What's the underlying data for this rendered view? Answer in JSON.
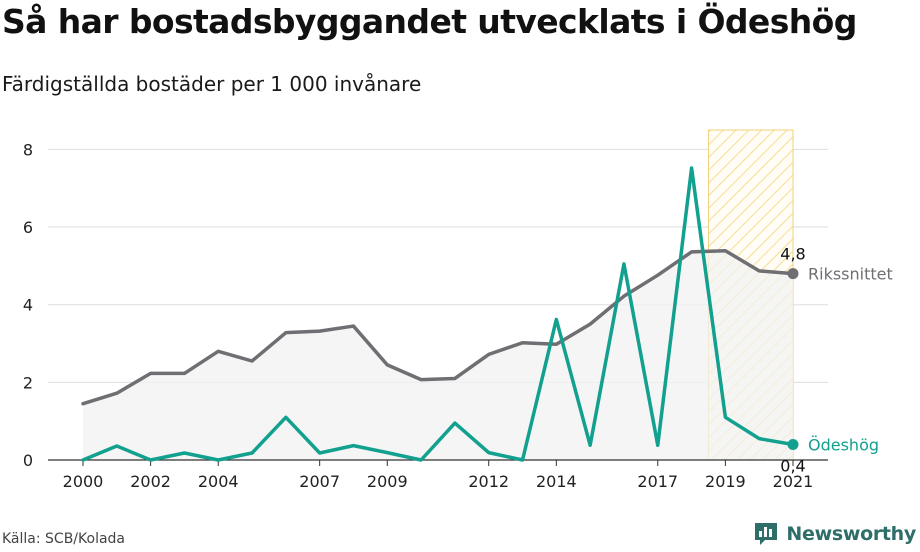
{
  "header": {
    "title": "Så har bostadsbyggandet utvecklats i Ödeshög",
    "subtitle": "Färdigställda bostäder per 1 000 invånare"
  },
  "footer": {
    "source": "Källa: SCB/Kolada",
    "brand": "Newsworthy",
    "brand_logo_icon": "bar-chart-speech-bubble-icon"
  },
  "colors": {
    "riket": "#6e6e73",
    "odeshog": "#12a08f",
    "area_fill": "#f2f2f2",
    "forecast_stroke": "#f2d27a",
    "grid": "#dddddd",
    "brand": "#2e6e68"
  },
  "chart_data": {
    "type": "line",
    "title": "Så har bostadsbyggandet utvecklats i Ödeshög",
    "subtitle": "Färdigställda bostäder per 1 000 invånare",
    "xlabel": "",
    "ylabel": "",
    "x": [
      2000,
      2001,
      2002,
      2003,
      2004,
      2005,
      2006,
      2007,
      2008,
      2009,
      2010,
      2011,
      2012,
      2013,
      2014,
      2015,
      2016,
      2017,
      2018,
      2019,
      2020,
      2021
    ],
    "x_tick_labels": [
      "2000",
      "2002",
      "2004",
      "2007",
      "2009",
      "2012",
      "2014",
      "2017",
      "2019",
      "2021"
    ],
    "ylim": [
      0,
      8.5
    ],
    "y_ticks": [
      0,
      2,
      4,
      6,
      8
    ],
    "grid": true,
    "series": [
      {
        "name": "Rikssnittet",
        "values": [
          1.45,
          1.72,
          2.23,
          2.23,
          2.8,
          2.55,
          3.28,
          3.32,
          3.45,
          2.45,
          2.07,
          2.1,
          2.72,
          3.02,
          2.98,
          3.5,
          4.22,
          4.76,
          5.36,
          5.39,
          4.87,
          4.8
        ],
        "end_label": "4,8",
        "shaded_area": true
      },
      {
        "name": "Ödeshög",
        "values": [
          0.0,
          0.36,
          0.0,
          0.18,
          0.0,
          0.18,
          1.1,
          0.18,
          0.37,
          0.19,
          0.0,
          0.95,
          0.19,
          0.0,
          3.62,
          0.38,
          5.05,
          0.38,
          7.52,
          1.1,
          0.55,
          0.4
        ],
        "end_label": "0,4"
      }
    ],
    "highlight_band": {
      "from": 2018.5,
      "to": 2021,
      "pattern": "diagonal-hatch"
    }
  }
}
